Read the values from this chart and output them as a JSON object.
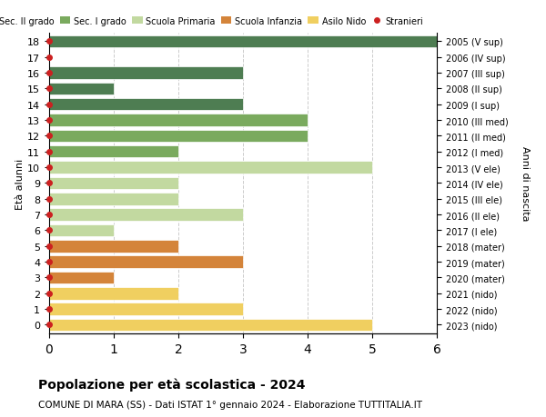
{
  "ages": [
    18,
    17,
    16,
    15,
    14,
    13,
    12,
    11,
    10,
    9,
    8,
    7,
    6,
    5,
    4,
    3,
    2,
    1,
    0
  ],
  "right_labels": [
    "2005 (V sup)",
    "2006 (IV sup)",
    "2007 (III sup)",
    "2008 (II sup)",
    "2009 (I sup)",
    "2010 (III med)",
    "2011 (II med)",
    "2012 (I med)",
    "2013 (V ele)",
    "2014 (IV ele)",
    "2015 (III ele)",
    "2016 (II ele)",
    "2017 (I ele)",
    "2018 (mater)",
    "2019 (mater)",
    "2020 (mater)",
    "2021 (nido)",
    "2022 (nido)",
    "2023 (nido)"
  ],
  "bar_values": [
    6,
    0,
    3,
    1,
    3,
    4,
    4,
    2,
    5,
    2,
    2,
    3,
    1,
    2,
    3,
    1,
    2,
    3,
    5
  ],
  "bar_colors": [
    "#4e7d52",
    "#4e7d52",
    "#4e7d52",
    "#4e7d52",
    "#4e7d52",
    "#7aaa5e",
    "#7aaa5e",
    "#7aaa5e",
    "#c2d9a0",
    "#c2d9a0",
    "#c2d9a0",
    "#c2d9a0",
    "#c2d9a0",
    "#d4843a",
    "#d4843a",
    "#d4843a",
    "#f0cf60",
    "#f0cf60",
    "#f0cf60"
  ],
  "stranieri_dots": [
    18,
    17,
    16,
    15,
    14,
    13,
    12,
    11,
    10,
    9,
    8,
    7,
    6,
    5,
    4,
    3,
    2,
    1,
    0
  ],
  "dot_color": "#cc2020",
  "legend_labels": [
    "Sec. II grado",
    "Sec. I grado",
    "Scuola Primaria",
    "Scuola Infanzia",
    "Asilo Nido",
    "Stranieri"
  ],
  "legend_colors": [
    "#4e7d52",
    "#7aaa5e",
    "#c2d9a0",
    "#d4843a",
    "#f0cf60",
    "#cc2020"
  ],
  "ylabel_left": "Età alunni",
  "ylabel_right": "Anni di nascita",
  "title": "Popolazione per età scolastica - 2024",
  "subtitle": "COMUNE DI MARA (SS) - Dati ISTAT 1° gennaio 2024 - Elaborazione TUTTITALIA.IT",
  "xlim": [
    0,
    6
  ],
  "xticks": [
    0,
    1,
    2,
    3,
    4,
    5,
    6
  ],
  "background_color": "#ffffff",
  "grid_color": "#cccccc",
  "bar_height": 0.78
}
